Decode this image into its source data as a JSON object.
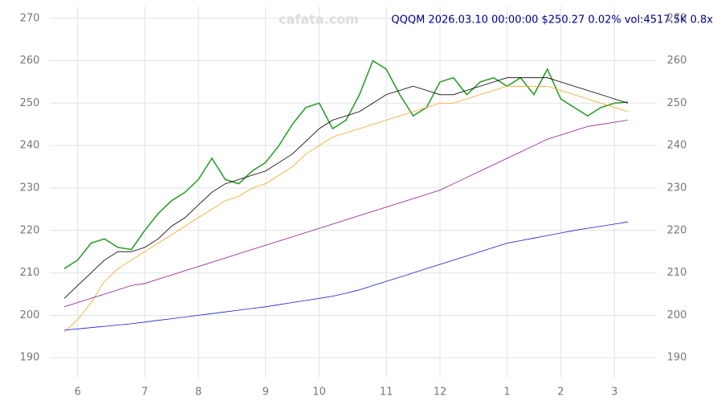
{
  "chart_data": {
    "type": "line",
    "title": "QQQM 2026.03.10 00:00:00 $250.27 0.02% vol:4517.5K 0.8x",
    "watermark": "cafata.com",
    "categories": [
      null,
      "6",
      null,
      null,
      null,
      null,
      "7",
      null,
      null,
      null,
      "8",
      null,
      null,
      null,
      null,
      "9",
      null,
      null,
      null,
      "10",
      null,
      null,
      null,
      null,
      "11",
      null,
      null,
      null,
      "12",
      null,
      null,
      null,
      null,
      "1",
      null,
      null,
      null,
      "2",
      null,
      null,
      null,
      "3",
      null
    ],
    "series": [
      {
        "color": "#2e9e2e",
        "width": 1.6,
        "values": [
          211,
          213,
          217,
          218,
          216,
          215.5,
          220,
          224,
          227,
          229,
          232,
          237,
          232,
          231,
          234,
          236,
          240,
          245,
          249,
          250,
          244,
          246,
          252,
          260,
          258,
          252,
          247,
          249,
          255,
          256,
          252,
          255,
          256,
          254,
          256,
          252,
          258,
          251,
          249,
          247,
          249,
          250,
          250.27
        ]
      },
      {
        "color": "#000000",
        "width": 0.8,
        "values": [
          204,
          207,
          210,
          213,
          215,
          215,
          216,
          218,
          221,
          223,
          226,
          229,
          231,
          232,
          233,
          234,
          236,
          238,
          241,
          244,
          246,
          247,
          248,
          250,
          252,
          253,
          254,
          253,
          252,
          252,
          253,
          254,
          255,
          256,
          256,
          256,
          256,
          255,
          254,
          253,
          252,
          251,
          250
        ]
      },
      {
        "color": "#f5a623",
        "width": 0.8,
        "values": [
          196,
          199,
          203,
          208,
          211,
          213,
          215,
          217,
          219,
          221,
          223,
          225,
          227,
          228,
          230,
          231,
          233,
          235,
          238,
          240,
          242,
          243,
          244,
          245,
          246,
          247,
          248,
          249,
          250,
          250,
          251,
          252,
          253,
          254,
          254,
          254,
          254,
          253,
          252,
          251,
          250,
          249,
          248
        ]
      },
      {
        "color": "#8b1a8b",
        "width": 0.8,
        "values": [
          202,
          203,
          204,
          205,
          206,
          207,
          207.5,
          208.5,
          209.5,
          210.5,
          211.5,
          212.5,
          213.5,
          214.5,
          215.5,
          216.5,
          217.5,
          218.5,
          219.5,
          220.5,
          221.5,
          222.5,
          223.5,
          224.5,
          225.5,
          226.5,
          227.5,
          228.5,
          229.5,
          231,
          232.5,
          234,
          235.5,
          237,
          238.5,
          240,
          241.5,
          242.5,
          243.5,
          244.5,
          245,
          245.5,
          246
        ]
      },
      {
        "color": "#1a1ad6",
        "width": 0.8,
        "values": [
          196.5,
          196.8,
          197.1,
          197.4,
          197.7,
          198,
          198.4,
          198.8,
          199.2,
          199.6,
          200,
          200.4,
          200.8,
          201.2,
          201.6,
          202,
          202.5,
          203,
          203.5,
          204,
          204.5,
          205.2,
          206,
          207,
          208,
          209,
          210,
          211,
          212,
          213,
          214,
          215,
          216,
          217,
          217.6,
          218.2,
          218.8,
          219.4,
          220,
          220.5,
          221,
          221.5,
          222
        ]
      }
    ],
    "ylim": [
      185.3,
      272.8
    ],
    "yticks": [
      190,
      200,
      210,
      220,
      230,
      240,
      250,
      260,
      270
    ],
    "grid": true
  }
}
